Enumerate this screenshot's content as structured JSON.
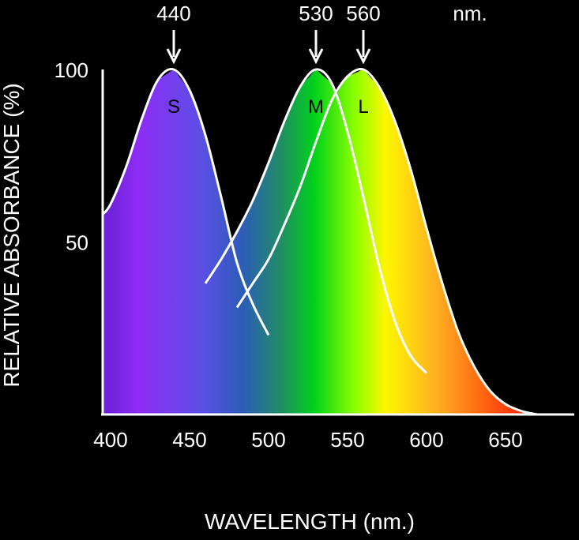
{
  "chart_data": {
    "type": "line",
    "title": "",
    "xlabel": "WAVELENGTH (nm.)",
    "ylabel": "RELATIVE ABSORBANCE (%)",
    "xlim": [
      395,
      680
    ],
    "ylim": [
      0,
      100
    ],
    "x_ticks": [
      "400",
      "450",
      "500",
      "550",
      "600",
      "650"
    ],
    "y_ticks": [
      "50",
      "100"
    ],
    "peak_markers": [
      {
        "wavelength": 440,
        "label": "440"
      },
      {
        "wavelength": 530,
        "label": "530"
      },
      {
        "wavelength": 560,
        "label": "560"
      }
    ],
    "peak_unit": "nm.",
    "series": [
      {
        "name": "S",
        "x": [
          395,
          400,
          410,
          420,
          430,
          440,
          450,
          460,
          470,
          480,
          490,
          500
        ],
        "y": [
          58,
          61,
          72,
          86,
          97,
          100,
          94,
          81,
          63,
          44,
          32,
          23
        ]
      },
      {
        "name": "M",
        "x": [
          460,
          470,
          480,
          490,
          500,
          510,
          520,
          530,
          540,
          550,
          560,
          570,
          580,
          590,
          600
        ],
        "y": [
          38,
          45,
          53,
          62,
          73,
          85,
          95,
          100,
          96,
          82,
          63,
          43,
          27,
          17,
          12
        ]
      },
      {
        "name": "L",
        "x": [
          480,
          490,
          500,
          510,
          520,
          530,
          540,
          550,
          560,
          570,
          580,
          590,
          600,
          610,
          620,
          630,
          640,
          650,
          660,
          670
        ],
        "y": [
          31,
          38,
          45,
          55,
          66,
          79,
          91,
          98,
          100,
          95,
          85,
          71,
          54,
          38,
          24,
          14,
          7,
          3,
          1,
          0
        ]
      }
    ]
  }
}
